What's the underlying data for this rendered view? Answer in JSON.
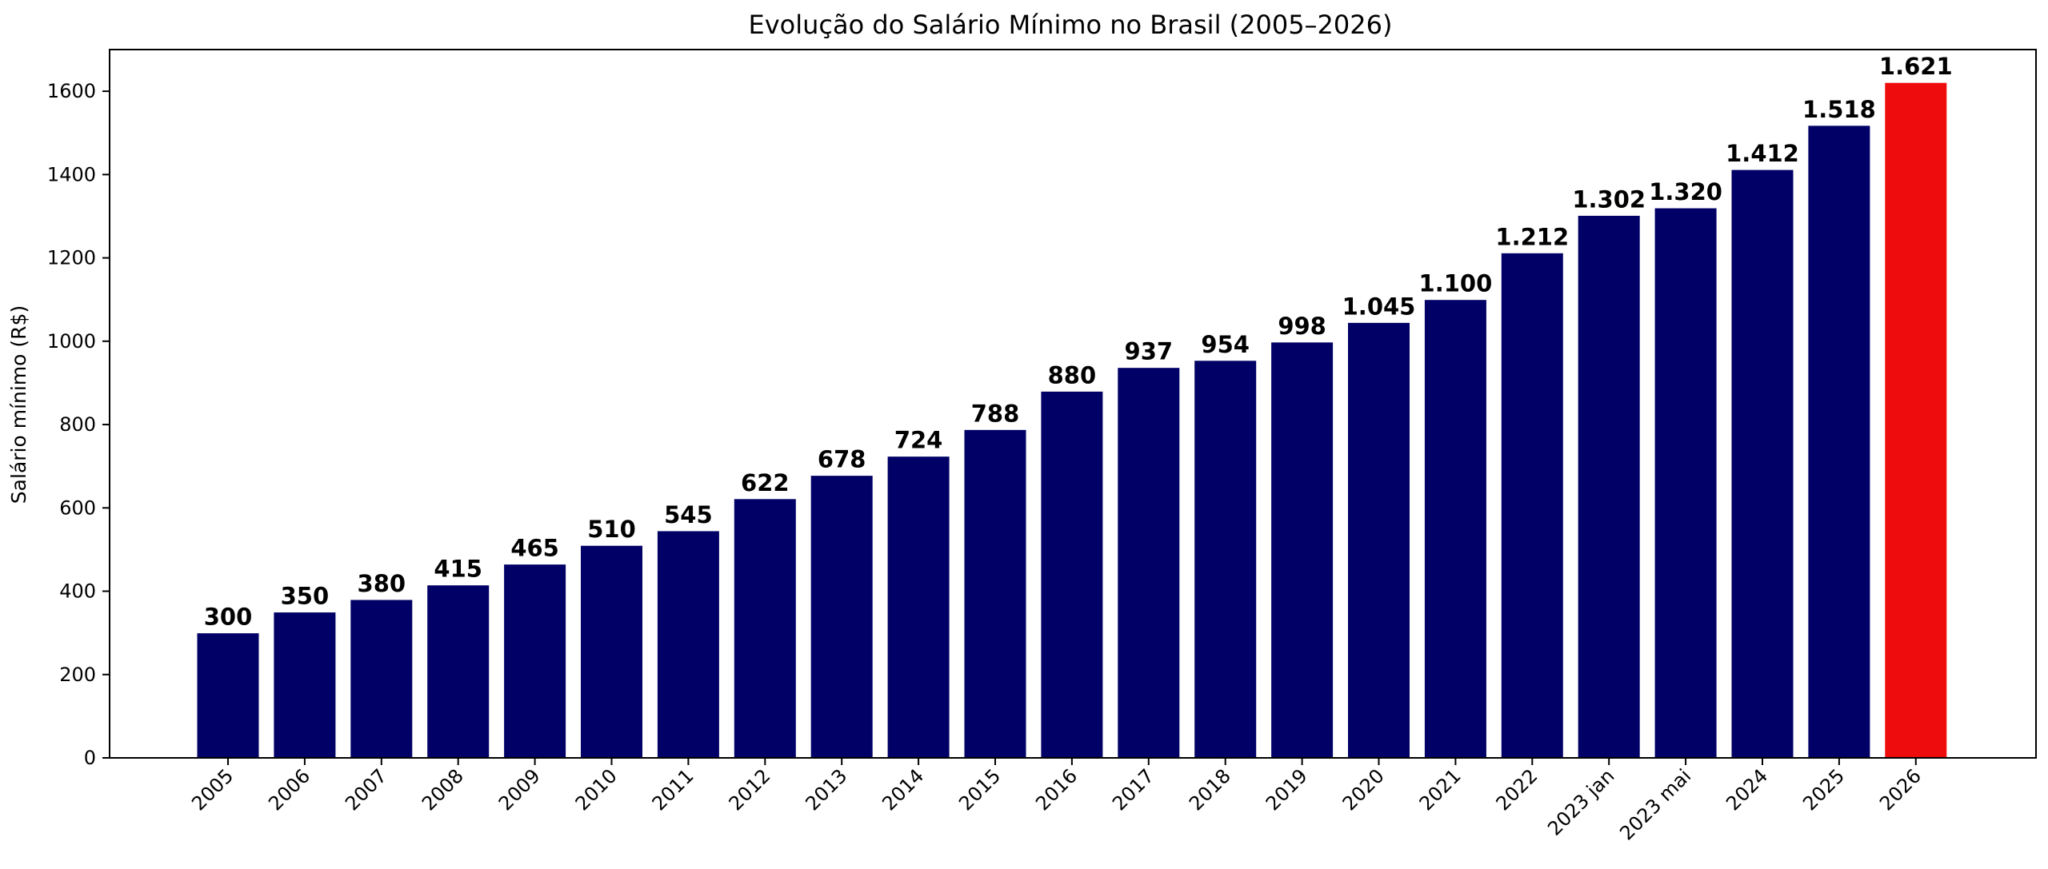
{
  "chart_data": {
    "type": "bar",
    "title": "Evolução do Salário Mínimo no Brasil (2005–2026)",
    "xlabel": "",
    "ylabel": "Salário mínimo (R$)",
    "ylim": [
      0,
      1700
    ],
    "yticks": [
      0,
      200,
      400,
      600,
      800,
      1000,
      1200,
      1400,
      1600
    ],
    "grid": false,
    "categories": [
      "2005",
      "2006",
      "2007",
      "2008",
      "2009",
      "2010",
      "2011",
      "2012",
      "2013",
      "2014",
      "2015",
      "2016",
      "2017",
      "2018",
      "2019",
      "2020",
      "2021",
      "2022",
      "2023 jan",
      "2023 mai",
      "2024",
      "2025",
      "2026"
    ],
    "values": [
      300,
      350,
      380,
      415,
      465,
      510,
      545,
      622,
      678,
      724,
      788,
      880,
      937,
      954,
      998,
      1045,
      1100,
      1212,
      1302,
      1320,
      1412,
      1518,
      1621
    ],
    "data_labels": [
      "300",
      "350",
      "380",
      "415",
      "465",
      "510",
      "545",
      "622",
      "678",
      "724",
      "788",
      "880",
      "937",
      "954",
      "998",
      "1.045",
      "1.100",
      "1.212",
      "1.302",
      "1.320",
      "1.412",
      "1.518",
      "1.621"
    ],
    "colors": {
      "bar": "#000066",
      "highlight": "#ee0c0c",
      "highlight_category": "2026"
    }
  }
}
